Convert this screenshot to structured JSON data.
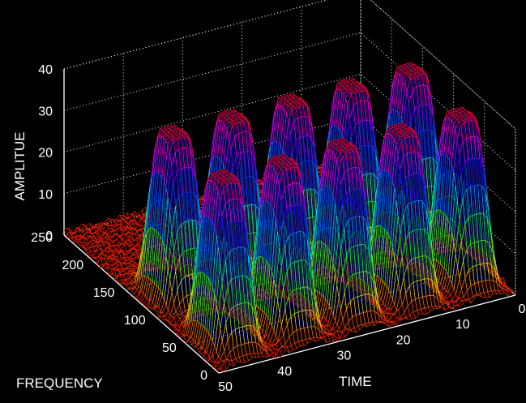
{
  "chart_data": {
    "type": "surface",
    "zlabel": "AMPLITUE",
    "xlabel": "FREQUENCY",
    "ylabel": "TIME",
    "z_ticks": [
      0,
      10,
      20,
      30,
      40
    ],
    "x_ticks": [
      0,
      50,
      100,
      150,
      200,
      250
    ],
    "y_ticks": [
      0,
      10,
      20,
      30,
      40,
      50
    ],
    "zlim": [
      0,
      40
    ],
    "xlim": [
      0,
      250
    ],
    "ylim": [
      0,
      50
    ],
    "grid": true,
    "colormap": [
      "#ff0000",
      "#ffff00",
      "#00ff00",
      "#00ffff",
      "#0000ff",
      "#ff00ff",
      "#ff0000"
    ],
    "peaks": [
      {
        "time": 45,
        "freq": 40,
        "amplitude": 40
      },
      {
        "time": 35,
        "freq": 40,
        "amplitude": 40
      },
      {
        "time": 25,
        "freq": 40,
        "amplitude": 40
      },
      {
        "time": 15,
        "freq": 40,
        "amplitude": 40
      },
      {
        "time": 5,
        "freq": 40,
        "amplitude": 40
      },
      {
        "time": 45,
        "freq": 120,
        "amplitude": 40
      },
      {
        "time": 35,
        "freq": 120,
        "amplitude": 40
      },
      {
        "time": 25,
        "freq": 120,
        "amplitude": 40
      },
      {
        "time": 15,
        "freq": 120,
        "amplitude": 40
      },
      {
        "time": 5,
        "freq": 120,
        "amplitude": 40
      }
    ]
  }
}
